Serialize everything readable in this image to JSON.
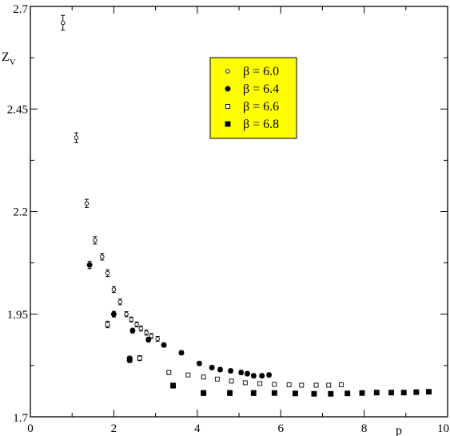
{
  "chart_data": {
    "type": "scatter",
    "title": "",
    "xlabel": "p",
    "ylabel": "Z",
    "ylabel_sub": "V",
    "xlim": [
      0,
      10
    ],
    "ylim": [
      1.7,
      2.7
    ],
    "x_ticks": [
      "0",
      "2",
      "4",
      "6",
      "8",
      "10"
    ],
    "y_ticks": [
      "1.7",
      "1.95",
      "2.2",
      "2.45",
      "2.7"
    ],
    "grid": false,
    "legend": {
      "position": "top-center",
      "background": "#ffff00"
    },
    "series": [
      {
        "name": "β = 6.0",
        "marker": "open-circle",
        "points": [
          {
            "x": 0.78,
            "y": 2.66,
            "err": 0.018
          },
          {
            "x": 1.1,
            "y": 2.38,
            "err": 0.012
          },
          {
            "x": 1.35,
            "y": 2.22,
            "err": 0.01
          },
          {
            "x": 1.55,
            "y": 2.13,
            "err": 0.009
          },
          {
            "x": 1.72,
            "y": 2.09,
            "err": 0.008
          },
          {
            "x": 1.85,
            "y": 2.05,
            "err": 0.008
          },
          {
            "x": 2.0,
            "y": 2.01,
            "err": 0.007
          },
          {
            "x": 2.15,
            "y": 1.98,
            "err": 0.007
          },
          {
            "x": 2.3,
            "y": 1.95,
            "err": 0.006
          },
          {
            "x": 2.42,
            "y": 1.937,
            "err": 0.006
          },
          {
            "x": 2.55,
            "y": 1.925,
            "err": 0.006
          },
          {
            "x": 2.65,
            "y": 1.915,
            "err": 0.006
          },
          {
            "x": 2.78,
            "y": 1.905,
            "err": 0.006
          },
          {
            "x": 2.9,
            "y": 1.897,
            "err": 0.006
          },
          {
            "x": 3.05,
            "y": 1.89,
            "err": 0.006
          }
        ]
      },
      {
        "name": "β = 6.4",
        "marker": "filled-circle",
        "points": [
          {
            "x": 1.42,
            "y": 2.07,
            "err": 0.009
          },
          {
            "x": 2.0,
            "y": 1.95,
            "err": 0.007
          },
          {
            "x": 2.45,
            "y": 1.91,
            "err": 0.006
          },
          {
            "x": 2.83,
            "y": 1.888,
            "err": 0.006
          },
          {
            "x": 3.2,
            "y": 1.875,
            "err": 0.005
          },
          {
            "x": 3.62,
            "y": 1.856,
            "err": 0.005
          },
          {
            "x": 4.05,
            "y": 1.83,
            "err": 0.005
          },
          {
            "x": 4.35,
            "y": 1.82,
            "err": 0.005
          },
          {
            "x": 4.55,
            "y": 1.815,
            "err": 0.005
          },
          {
            "x": 4.8,
            "y": 1.812,
            "err": 0.005
          },
          {
            "x": 5.05,
            "y": 1.808,
            "err": 0.005
          },
          {
            "x": 5.2,
            "y": 1.805,
            "err": 0.005
          },
          {
            "x": 5.35,
            "y": 1.8,
            "err": 0.005
          },
          {
            "x": 5.55,
            "y": 1.8,
            "err": 0.005
          },
          {
            "x": 5.72,
            "y": 1.802,
            "err": 0.005
          }
        ]
      },
      {
        "name": "β = 6.6",
        "marker": "open-square",
        "points": [
          {
            "x": 1.85,
            "y": 1.925,
            "err": 0.008
          },
          {
            "x": 2.62,
            "y": 1.843,
            "err": 0.006
          },
          {
            "x": 3.32,
            "y": 1.808,
            "err": 0.005
          },
          {
            "x": 3.78,
            "y": 1.802,
            "err": 0.004
          },
          {
            "x": 4.15,
            "y": 1.797,
            "err": 0.004
          },
          {
            "x": 4.48,
            "y": 1.792,
            "err": 0.004
          },
          {
            "x": 4.82,
            "y": 1.787,
            "err": 0.004
          },
          {
            "x": 5.15,
            "y": 1.783,
            "err": 0.004
          },
          {
            "x": 5.5,
            "y": 1.781,
            "err": 0.003
          },
          {
            "x": 5.85,
            "y": 1.779,
            "err": 0.003
          },
          {
            "x": 6.2,
            "y": 1.778,
            "err": 0.003
          },
          {
            "x": 6.5,
            "y": 1.777,
            "err": 0.003
          },
          {
            "x": 6.85,
            "y": 1.777,
            "err": 0.003
          },
          {
            "x": 7.15,
            "y": 1.777,
            "err": 0.003
          },
          {
            "x": 7.45,
            "y": 1.778,
            "err": 0.003
          }
        ]
      },
      {
        "name": "β = 6.8",
        "marker": "filled-square",
        "points": [
          {
            "x": 2.38,
            "y": 1.84,
            "err": 0.008
          },
          {
            "x": 3.42,
            "y": 1.776,
            "err": 0.006
          },
          {
            "x": 4.15,
            "y": 1.758,
            "err": 0.006
          },
          {
            "x": 4.78,
            "y": 1.758,
            "err": 0.006
          },
          {
            "x": 5.35,
            "y": 1.758,
            "err": 0.006
          },
          {
            "x": 5.85,
            "y": 1.758,
            "err": 0.005
          },
          {
            "x": 6.35,
            "y": 1.757,
            "err": 0.005
          },
          {
            "x": 6.8,
            "y": 1.756,
            "err": 0.005
          },
          {
            "x": 7.2,
            "y": 1.756,
            "err": 0.005
          },
          {
            "x": 7.6,
            "y": 1.757,
            "err": 0.005
          },
          {
            "x": 7.95,
            "y": 1.758,
            "err": 0.005
          },
          {
            "x": 8.3,
            "y": 1.759,
            "err": 0.005
          },
          {
            "x": 8.65,
            "y": 1.759,
            "err": 0.005
          },
          {
            "x": 8.95,
            "y": 1.759,
            "err": 0.005
          },
          {
            "x": 9.25,
            "y": 1.76,
            "err": 0.005
          },
          {
            "x": 9.55,
            "y": 1.761,
            "err": 0.005
          }
        ]
      }
    ]
  }
}
